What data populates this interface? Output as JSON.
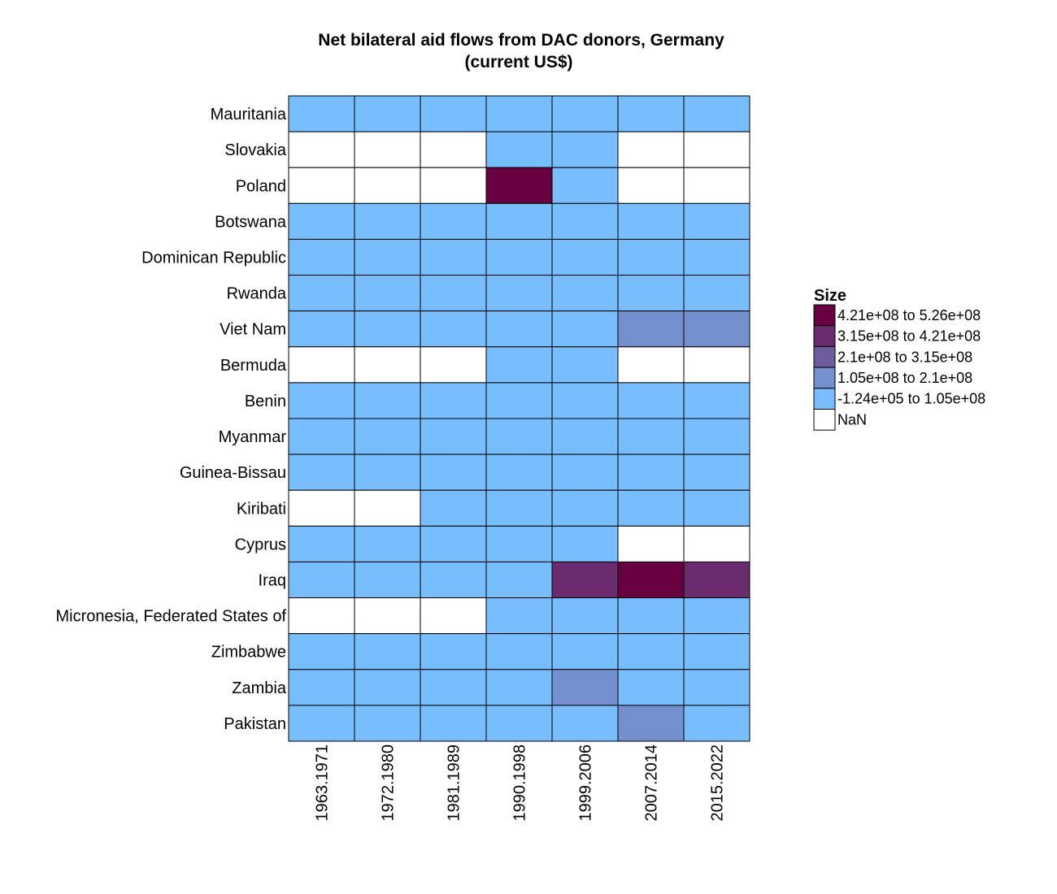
{
  "chart_data": {
    "type": "heatmap",
    "title_line1": "Net bilateral aid flows from DAC donors, Germany",
    "title_line2": "(current US$)",
    "x_categories": [
      "1963.1971",
      "1972.1980",
      "1981.1989",
      "1990.1998",
      "1999.2006",
      "2007.2014",
      "2015.2022"
    ],
    "y_categories": [
      "Mauritania",
      "Slovakia",
      "Poland",
      "Botswana",
      "Dominican Republic",
      "Rwanda",
      "Viet Nam",
      "Bermuda",
      "Benin",
      "Myanmar",
      "Guinea-Bissau",
      "Kiribati",
      "Cyprus",
      "Iraq",
      "Micronesia, Federated States of",
      "Zimbabwe",
      "Zambia",
      "Pakistan"
    ],
    "bins": [
      {
        "label": "4.21e+08 to 5.26e+08",
        "color": "#67003f"
      },
      {
        "label": "3.15e+08 to 4.21e+08",
        "color": "#6a2c6e"
      },
      {
        "label": "2.1e+08 to 3.15e+08",
        "color": "#6d5d9e"
      },
      {
        "label": "1.05e+08 to 2.1e+08",
        "color": "#7590cf"
      },
      {
        "label": "-1.24e+05 to 1.05e+08",
        "color": "#78bdfd"
      },
      {
        "label": "NaN",
        "color": "#ffffff"
      }
    ],
    "cells": [
      [
        4,
        4,
        4,
        4,
        4,
        4,
        4
      ],
      [
        5,
        5,
        5,
        4,
        4,
        5,
        5
      ],
      [
        5,
        5,
        5,
        0,
        4,
        5,
        5
      ],
      [
        4,
        4,
        4,
        4,
        4,
        4,
        4
      ],
      [
        4,
        4,
        4,
        4,
        4,
        4,
        4
      ],
      [
        4,
        4,
        4,
        4,
        4,
        4,
        4
      ],
      [
        4,
        4,
        4,
        4,
        4,
        3,
        3
      ],
      [
        5,
        5,
        5,
        4,
        4,
        5,
        5
      ],
      [
        4,
        4,
        4,
        4,
        4,
        4,
        4
      ],
      [
        4,
        4,
        4,
        4,
        4,
        4,
        4
      ],
      [
        4,
        4,
        4,
        4,
        4,
        4,
        4
      ],
      [
        5,
        5,
        4,
        4,
        4,
        4,
        4
      ],
      [
        4,
        4,
        4,
        4,
        4,
        5,
        5
      ],
      [
        4,
        4,
        4,
        4,
        1,
        0,
        1
      ],
      [
        5,
        5,
        5,
        4,
        4,
        4,
        4
      ],
      [
        4,
        4,
        4,
        4,
        4,
        4,
        4
      ],
      [
        4,
        4,
        4,
        4,
        3,
        4,
        4
      ],
      [
        4,
        4,
        4,
        4,
        4,
        3,
        4
      ]
    ],
    "legend_title": "Size",
    "legend_placement": "right"
  }
}
